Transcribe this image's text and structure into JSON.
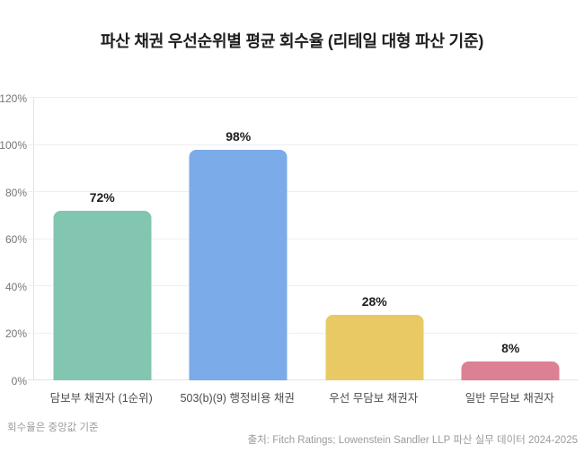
{
  "chart": {
    "title": "파산 채권 우선순위별 평균 회수율 (리테일 대형 파산 기준)"
  },
  "chart_data": {
    "type": "bar",
    "title": "파산 채권 우선순위별 평균 회수율 (리테일 대형 파산 기준)",
    "categories": [
      "담보부 채권자 (1순위)",
      "503(b)(9) 행정비용 채권",
      "우선 무담보 채권자",
      "일반 무담보 채권자"
    ],
    "values": [
      72,
      98,
      28,
      8
    ],
    "value_labels": [
      "72%",
      "98%",
      "28%",
      "8%"
    ],
    "bar_colors": [
      "#82c5b0",
      "#7babe8",
      "#e9c964",
      "#dc8093"
    ],
    "xlabel": "",
    "ylabel": "",
    "ylim": [
      0,
      120
    ],
    "ytick_step": 20,
    "ytick_labels": [
      "0%",
      "20%",
      "40%",
      "60%",
      "80%",
      "100%",
      "120%"
    ],
    "grid": true,
    "legend": false
  },
  "footer": {
    "note": "회수율은 중앙값 기준",
    "source": "출처: Fitch Ratings; Lowenstein Sandler LLP 파산 실무 데이터 2024-2025"
  }
}
